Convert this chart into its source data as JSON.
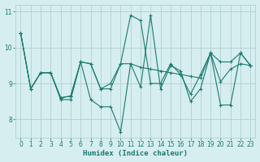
{
  "xlabel": "Humidex (Indice chaleur)",
  "bg_color": "#d6eef0",
  "grid_color": "#b0d0d0",
  "line_color": "#1a7a6e",
  "xlim": [
    -0.5,
    23.5
  ],
  "ylim": [
    7.5,
    11.2
  ],
  "yticks": [
    8,
    9,
    10,
    11
  ],
  "xticks": [
    0,
    1,
    2,
    3,
    4,
    5,
    6,
    7,
    8,
    9,
    10,
    11,
    12,
    13,
    14,
    15,
    16,
    17,
    18,
    19,
    20,
    21,
    22,
    23
  ],
  "lines": [
    [
      10.4,
      8.85,
      9.3,
      9.3,
      8.6,
      8.65,
      9.6,
      9.55,
      8.85,
      8.85,
      9.55,
      9.55,
      9.45,
      9.4,
      9.35,
      9.3,
      9.25,
      9.2,
      9.15,
      9.85,
      9.05,
      9.4,
      9.55,
      9.5
    ],
    [
      10.4,
      8.85,
      9.3,
      9.3,
      8.6,
      8.65,
      9.6,
      9.55,
      8.85,
      9.0,
      9.55,
      10.9,
      10.75,
      9.0,
      9.0,
      9.55,
      9.25,
      8.7,
      9.25,
      9.85,
      9.6,
      9.6,
      9.85,
      9.5
    ],
    [
      10.4,
      8.85,
      9.3,
      9.3,
      8.55,
      8.55,
      9.6,
      8.55,
      8.35,
      8.35,
      7.65,
      9.55,
      8.9,
      10.9,
      8.85,
      9.5,
      9.35,
      8.5,
      8.85,
      9.85,
      8.4,
      8.4,
      9.85,
      9.5
    ]
  ]
}
